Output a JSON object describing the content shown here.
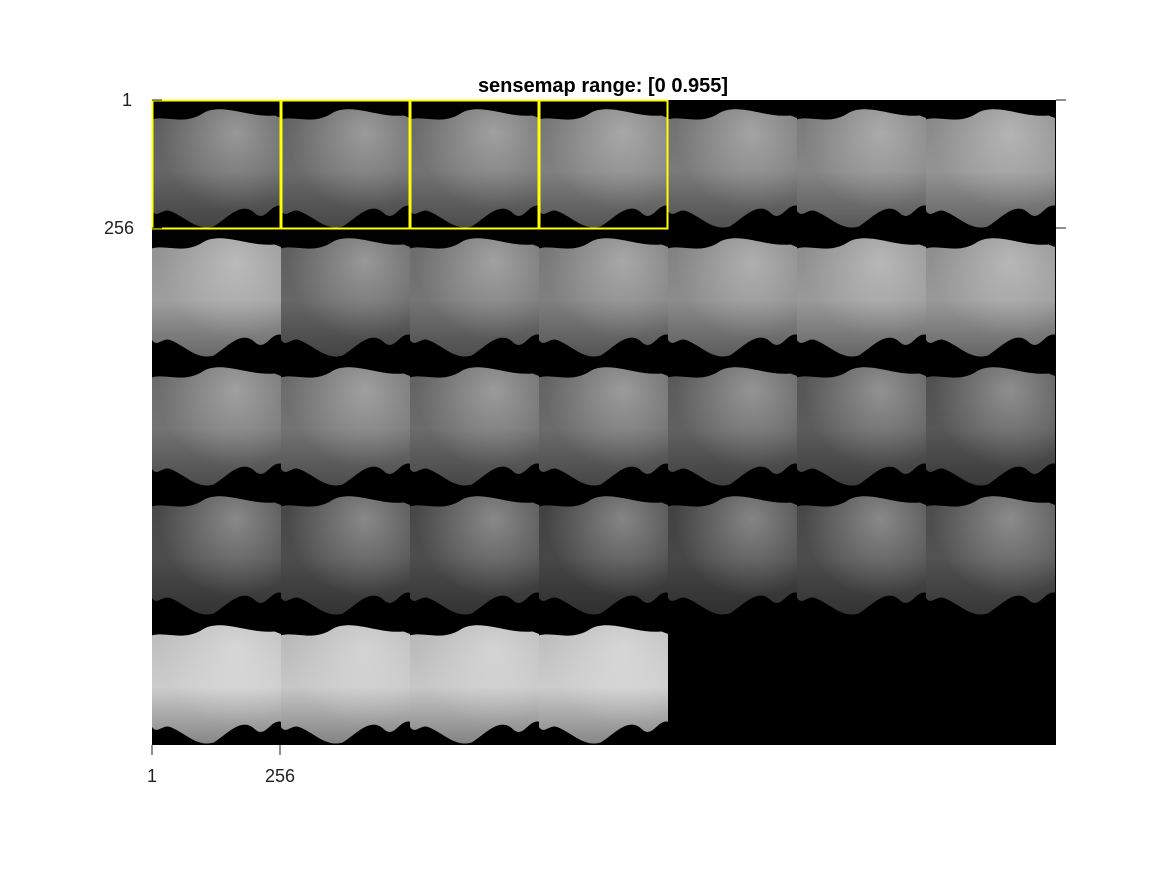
{
  "figure": {
    "title": "sensemap range: [0 0.955]",
    "y_ticks": [
      "1",
      "256"
    ],
    "x_ticks": [
      "1",
      "256"
    ]
  },
  "montage": {
    "tile_size": 256,
    "columns": 7,
    "rows": 5,
    "tile_count": 32,
    "highlighted_tiles": [
      0,
      1,
      2,
      3
    ],
    "highlight_color": "#ffff00",
    "background_color": "#000000",
    "tile_brightness": [
      [
        0.4,
        0.42,
        0.45,
        0.5,
        0.48,
        0.52,
        0.58
      ],
      [
        0.62,
        0.4,
        0.46,
        0.5,
        0.55,
        0.6,
        0.6
      ],
      [
        0.45,
        0.45,
        0.42,
        0.42,
        0.38,
        0.36,
        0.34
      ],
      [
        0.3,
        0.3,
        0.3,
        0.28,
        0.28,
        0.3,
        0.32
      ],
      [
        0.8,
        0.78,
        0.78,
        0.8
      ]
    ]
  }
}
